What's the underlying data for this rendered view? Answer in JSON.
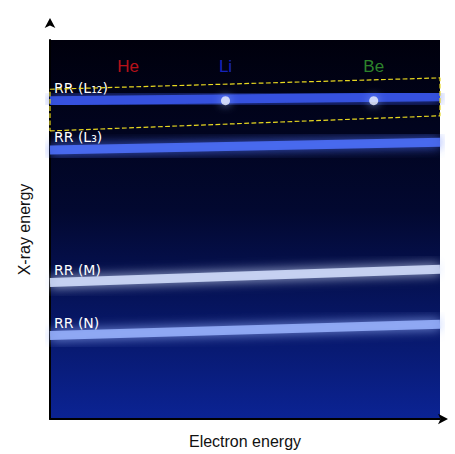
{
  "chart_data": {
    "type": "line",
    "x_label": "Electron energy",
    "y_label": "X-ray energy",
    "xlim": [
      0,
      100
    ],
    "ylim": [
      0,
      100
    ],
    "xticks": [],
    "yticks": [],
    "tick_labels": false,
    "grid": false,
    "series": [
      {
        "name": "RR (L₁₂)",
        "color": "#3a58f0",
        "x": [
          0,
          100
        ],
        "values": [
          84,
          85
        ]
      },
      {
        "name": "RR (L₃)",
        "color": "#4f72ff",
        "x": [
          0,
          100
        ],
        "values": [
          71,
          73
        ]
      },
      {
        "name": "RR (M)",
        "color": "#d6e2ff",
        "x": [
          0,
          100
        ],
        "values": [
          36,
          39.5
        ]
      },
      {
        "name": "RR (N)",
        "color": "#9ab4ff",
        "x": [
          0,
          100
        ],
        "values": [
          22,
          25
        ]
      }
    ],
    "peaks": {
      "x": [
        45,
        83
      ],
      "y": [
        84,
        84
      ],
      "color": "#eef3ff"
    },
    "annotations": [
      {
        "text": "He",
        "x": 20,
        "y": 93,
        "color": "#e8161c"
      },
      {
        "text": "Li",
        "x": 45,
        "y": 93,
        "color": "#1c2ee8"
      },
      {
        "text": "Be",
        "x": 83,
        "y": 93,
        "color": "#3aa832"
      }
    ],
    "highlight": {
      "x": [
        0,
        100,
        100,
        0,
        0
      ],
      "y": [
        76,
        80,
        90,
        87,
        76
      ],
      "color": "#e8d820",
      "line_style": "dashed"
    }
  }
}
